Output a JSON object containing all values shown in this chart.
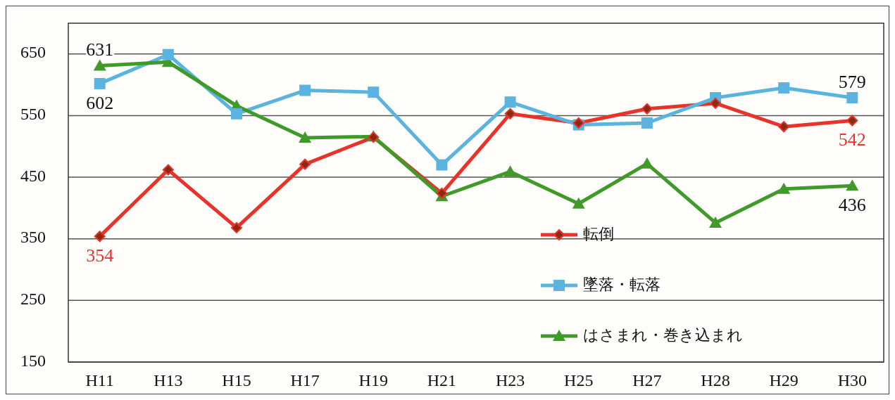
{
  "chart_data": {
    "type": "line",
    "categories": [
      "H11",
      "H13",
      "H15",
      "H17",
      "H19",
      "H21",
      "H23",
      "H25",
      "H27",
      "H28",
      "H29",
      "H30"
    ],
    "series": [
      {
        "name": "転倒",
        "color": "#e8332a",
        "values": [
          354,
          462,
          368,
          471,
          515,
          424,
          553,
          538,
          561,
          570,
          532,
          542
        ],
        "value_labels": [
          "354",
          null,
          null,
          null,
          null,
          null,
          null,
          null,
          null,
          null,
          null,
          "542"
        ]
      },
      {
        "name": "墜落・転落",
        "color": "#5bb4e0",
        "values": [
          602,
          649,
          553,
          591,
          588,
          470,
          572,
          535,
          538,
          579,
          595,
          579
        ],
        "value_labels": [
          "602",
          null,
          null,
          null,
          null,
          null,
          null,
          null,
          null,
          null,
          null,
          "579"
        ],
        "marker": "square"
      },
      {
        "name": "はさまれ・巻き込まれ",
        "color": "#3f9a2a",
        "values": [
          631,
          637,
          566,
          514,
          516,
          419,
          459,
          407,
          472,
          376,
          431,
          436
        ],
        "value_labels": [
          "631",
          null,
          null,
          null,
          null,
          null,
          null,
          null,
          null,
          null,
          null,
          "436"
        ],
        "marker": "triangle"
      }
    ],
    "marker": "diamond",
    "ylim": [
      150,
      700
    ],
    "yticks": [
      150,
      250,
      350,
      450,
      550,
      650
    ],
    "grid": "y",
    "legend": "bottom right"
  }
}
